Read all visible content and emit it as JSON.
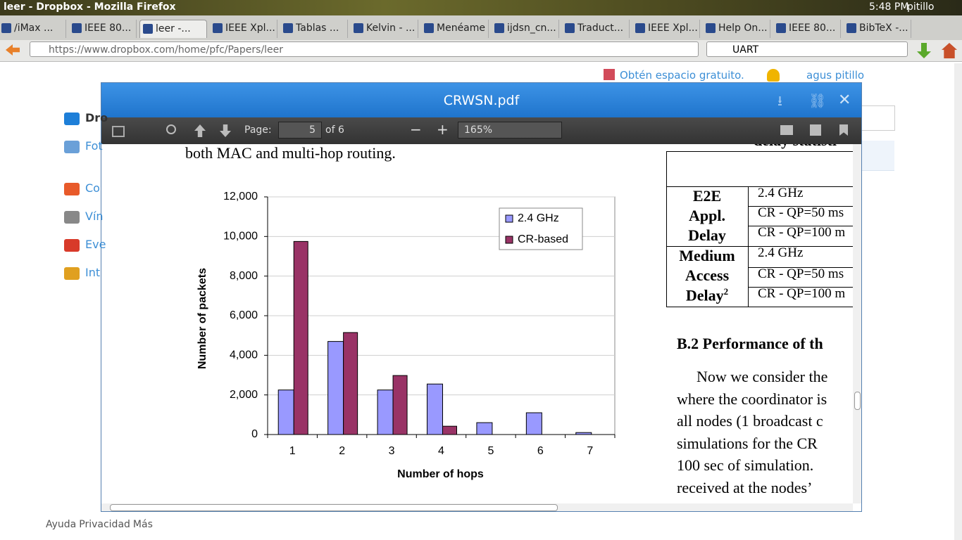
{
  "window": {
    "title": "leer - Dropbox - Mozilla Firefox",
    "clock": "5:48 PM",
    "user": "pitillo"
  },
  "tabs": [
    "/iMax ...",
    "IEEE 80...",
    "leer -...",
    "IEEE Xpl...",
    "Tablas ...",
    "Kelvin - ...",
    "Menéame",
    "ijdsn_cn...",
    "Traduct...",
    "IEEE Xpl...",
    "Help On...",
    "IEEE 80...",
    "BibTeX -..."
  ],
  "address_bar": {
    "url": "https://www.dropbox.com/home/pfc/Papers/leer",
    "search": "UART"
  },
  "dropbox": {
    "promo": "Obtén espacio gratuito.",
    "account": "agus pitillo",
    "sidebar": [
      "Dro",
      "Fot",
      "Co",
      "Vín",
      "Eve",
      "Int"
    ],
    "footer": [
      "Ayuda",
      "Privacidad",
      "Más"
    ]
  },
  "viewer": {
    "filename": "CRWSN.pdf",
    "page_label": "Page:",
    "page": "5",
    "page_total": "of 6",
    "zoom": "165%"
  },
  "pdf": {
    "line_above": "both MAC and multi-hop routing.",
    "table": {
      "caption": "delay statisti",
      "groups": [
        {
          "label": [
            "E2E",
            "Appl.",
            "Delay"
          ],
          "rows": [
            "2.4 GHz",
            "CR - QP=50 ms",
            "CR - QP=100 m"
          ]
        },
        {
          "label": [
            "Medium",
            "Access",
            "Delay"
          ],
          "superscript": "2",
          "rows": [
            "2.4 GHz",
            "CR - QP=50 ms",
            "CR - QP=100 m"
          ]
        }
      ]
    },
    "heading": "B.2 Performance of th",
    "paragraph": [
      "Now we consider the",
      "where the coordinator is",
      "all nodes (1 broadcast c",
      "simulations for the CR",
      "100 sec of simulation.",
      "received at the nodes’"
    ]
  },
  "chart_data": {
    "type": "bar",
    "x_label": "Number of hops",
    "y_label": "Number of packets",
    "categories": [
      "1",
      "2",
      "3",
      "4",
      "5",
      "6",
      "7"
    ],
    "series": [
      {
        "name": "2.4 GHz",
        "color": "#9999ff",
        "values": [
          2250,
          4700,
          2250,
          2550,
          600,
          1100,
          100
        ]
      },
      {
        "name": "CR-based",
        "color": "#993366",
        "values": [
          9750,
          5150,
          2980,
          420,
          0,
          0,
          0
        ]
      }
    ],
    "ylim": [
      0,
      12000
    ],
    "yticks": [
      0,
      {
        "value": 2000,
        "label": "2,000"
      },
      {
        "value": 4000,
        "label": "4,000"
      },
      {
        "value": 6000,
        "label": "6,000"
      },
      {
        "value": 8000,
        "label": "8,000"
      },
      {
        "value": 10000,
        "label": "10,000"
      },
      {
        "value": 12000,
        "label": "12,000"
      }
    ],
    "grid": true,
    "legend": "top-right"
  }
}
